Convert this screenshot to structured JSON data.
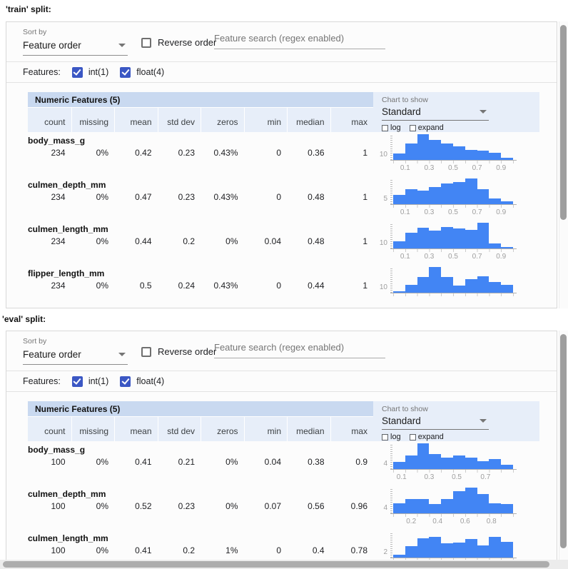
{
  "colors": {
    "bar_blue": "#4285f4",
    "table_title_band": "#c9d9f0",
    "table_header_row": "#e7eef9",
    "checkbox_blue": "#3b57c4"
  },
  "splits": [
    {
      "title": "'train' split:",
      "controls": {
        "sort_by_label": "Sort by",
        "sort_by_value": "Feature order",
        "reverse_order_label": "Reverse order",
        "search_placeholder": "Feature search (regex enabled)",
        "features_label": "Features:",
        "toggles": [
          {
            "label": "int(1)",
            "checked": true
          },
          {
            "label": "float(4)",
            "checked": true
          }
        ]
      },
      "table": {
        "title": "Numeric Features (5)",
        "columns": [
          "count",
          "missing",
          "mean",
          "std dev",
          "zeros",
          "min",
          "median",
          "max"
        ]
      },
      "chart_controls": {
        "label": "Chart to show",
        "value": "Standard",
        "log_label": "log",
        "expand_label": "expand"
      },
      "rows": [
        {
          "name": "body_mass_g",
          "values": [
            "234",
            "0%",
            "0.42",
            "0.23",
            "0.43%",
            "0",
            "0.36",
            "1"
          ]
        },
        {
          "name": "culmen_depth_mm",
          "values": [
            "234",
            "0%",
            "0.47",
            "0.23",
            "0.43%",
            "0",
            "0.48",
            "1"
          ]
        },
        {
          "name": "culmen_length_mm",
          "values": [
            "234",
            "0%",
            "0.44",
            "0.2",
            "0%",
            "0.04",
            "0.48",
            "1"
          ]
        },
        {
          "name": "flipper_length_mm",
          "values": [
            "234",
            "0%",
            "0.5",
            "0.24",
            "0.43%",
            "0",
            "0.44",
            "1"
          ]
        }
      ]
    },
    {
      "title": "'eval' split:",
      "controls": {
        "sort_by_label": "Sort by",
        "sort_by_value": "Feature order",
        "reverse_order_label": "Reverse order",
        "search_placeholder": "Feature search (regex enabled)",
        "features_label": "Features:",
        "toggles": [
          {
            "label": "int(1)",
            "checked": true
          },
          {
            "label": "float(4)",
            "checked": true
          }
        ]
      },
      "table": {
        "title": "Numeric Features (5)",
        "columns": [
          "count",
          "missing",
          "mean",
          "std dev",
          "zeros",
          "min",
          "median",
          "max"
        ]
      },
      "chart_controls": {
        "label": "Chart to show",
        "value": "Standard",
        "log_label": "log",
        "expand_label": "expand"
      },
      "rows": [
        {
          "name": "body_mass_g",
          "values": [
            "100",
            "0%",
            "0.41",
            "0.21",
            "0%",
            "0.04",
            "0.38",
            "0.9"
          ]
        },
        {
          "name": "culmen_depth_mm",
          "values": [
            "100",
            "0%",
            "0.52",
            "0.23",
            "0%",
            "0.07",
            "0.56",
            "0.96"
          ]
        },
        {
          "name": "culmen_length_mm",
          "values": [
            "100",
            "0%",
            "0.41",
            "0.2",
            "1%",
            "0",
            "0.4",
            "0.78"
          ]
        }
      ]
    }
  ],
  "chart_data": [
    {
      "type": "histogram",
      "split": "train",
      "feature": "body_mass_g",
      "y_axis_label": "10",
      "bar_color": "#4285f4",
      "x_tick_labels": [
        {
          "label": "0.1",
          "pos_pct": 10
        },
        {
          "label": "0.3",
          "pos_pct": 30
        },
        {
          "label": "0.5",
          "pos_pct": 50
        },
        {
          "label": "0.7",
          "pos_pct": 70
        },
        {
          "label": "0.9",
          "pos_pct": 90
        }
      ],
      "bins_relative": [
        0.24,
        0.64,
        1.0,
        0.79,
        0.64,
        0.52,
        0.4,
        0.37,
        0.28,
        0.09
      ]
    },
    {
      "type": "histogram",
      "split": "train",
      "feature": "culmen_depth_mm",
      "y_axis_label": "5",
      "bar_color": "#4285f4",
      "x_tick_labels": [
        {
          "label": "0.1",
          "pos_pct": 10
        },
        {
          "label": "0.3",
          "pos_pct": 30
        },
        {
          "label": "0.5",
          "pos_pct": 50
        },
        {
          "label": "0.7",
          "pos_pct": 70
        },
        {
          "label": "0.9",
          "pos_pct": 90
        }
      ],
      "bins_relative": [
        0.36,
        0.58,
        0.53,
        0.68,
        0.81,
        0.87,
        1.0,
        0.57,
        0.21,
        0.11
      ]
    },
    {
      "type": "histogram",
      "split": "train",
      "feature": "culmen_length_mm",
      "y_axis_label": "10",
      "bar_color": "#4285f4",
      "x_tick_labels": [
        {
          "label": "0.1",
          "pos_pct": 10
        },
        {
          "label": "0.3",
          "pos_pct": 30
        },
        {
          "label": "0.5",
          "pos_pct": 50
        },
        {
          "label": "0.7",
          "pos_pct": 70
        },
        {
          "label": "0.9",
          "pos_pct": 90
        }
      ],
      "bins_relative": [
        0.27,
        0.6,
        0.8,
        0.7,
        0.82,
        0.78,
        0.73,
        1.0,
        0.2,
        0.06
      ]
    },
    {
      "type": "histogram",
      "split": "train",
      "feature": "flipper_length_mm",
      "y_axis_label": "10",
      "bar_color": "#4285f4",
      "x_tick_labels": [],
      "bins_relative": [
        0.06,
        0.3,
        0.62,
        1.0,
        0.62,
        0.28,
        0.52,
        0.65,
        0.42,
        0.3
      ]
    },
    {
      "type": "histogram",
      "split": "eval",
      "feature": "body_mass_g",
      "y_axis_label": "4",
      "bar_color": "#4285f4",
      "x_tick_labels": [
        {
          "label": "0.1",
          "pos_pct": 7
        },
        {
          "label": "0.3",
          "pos_pct": 30
        },
        {
          "label": "0.5",
          "pos_pct": 53
        },
        {
          "label": "0.7",
          "pos_pct": 77
        }
      ],
      "bins_relative": [
        0.28,
        0.52,
        1.0,
        0.58,
        0.45,
        0.52,
        0.45,
        0.3,
        0.4,
        0.18
      ]
    },
    {
      "type": "histogram",
      "split": "eval",
      "feature": "culmen_depth_mm",
      "y_axis_label": "4",
      "bar_color": "#4285f4",
      "x_tick_labels": [
        {
          "label": "0.2",
          "pos_pct": 15
        },
        {
          "label": "0.4",
          "pos_pct": 37
        },
        {
          "label": "0.6",
          "pos_pct": 60
        },
        {
          "label": "0.8",
          "pos_pct": 82
        }
      ],
      "bins_relative": [
        0.4,
        0.55,
        0.55,
        0.35,
        0.55,
        0.85,
        1.0,
        0.75,
        0.4,
        0.35
      ]
    },
    {
      "type": "histogram",
      "split": "eval",
      "feature": "culmen_length_mm",
      "y_axis_label": "2",
      "bar_color": "#4285f4",
      "x_tick_labels": [],
      "bins_relative": [
        0.1,
        0.45,
        0.75,
        0.8,
        0.55,
        0.58,
        0.72,
        0.48,
        0.8,
        0.6
      ]
    }
  ]
}
